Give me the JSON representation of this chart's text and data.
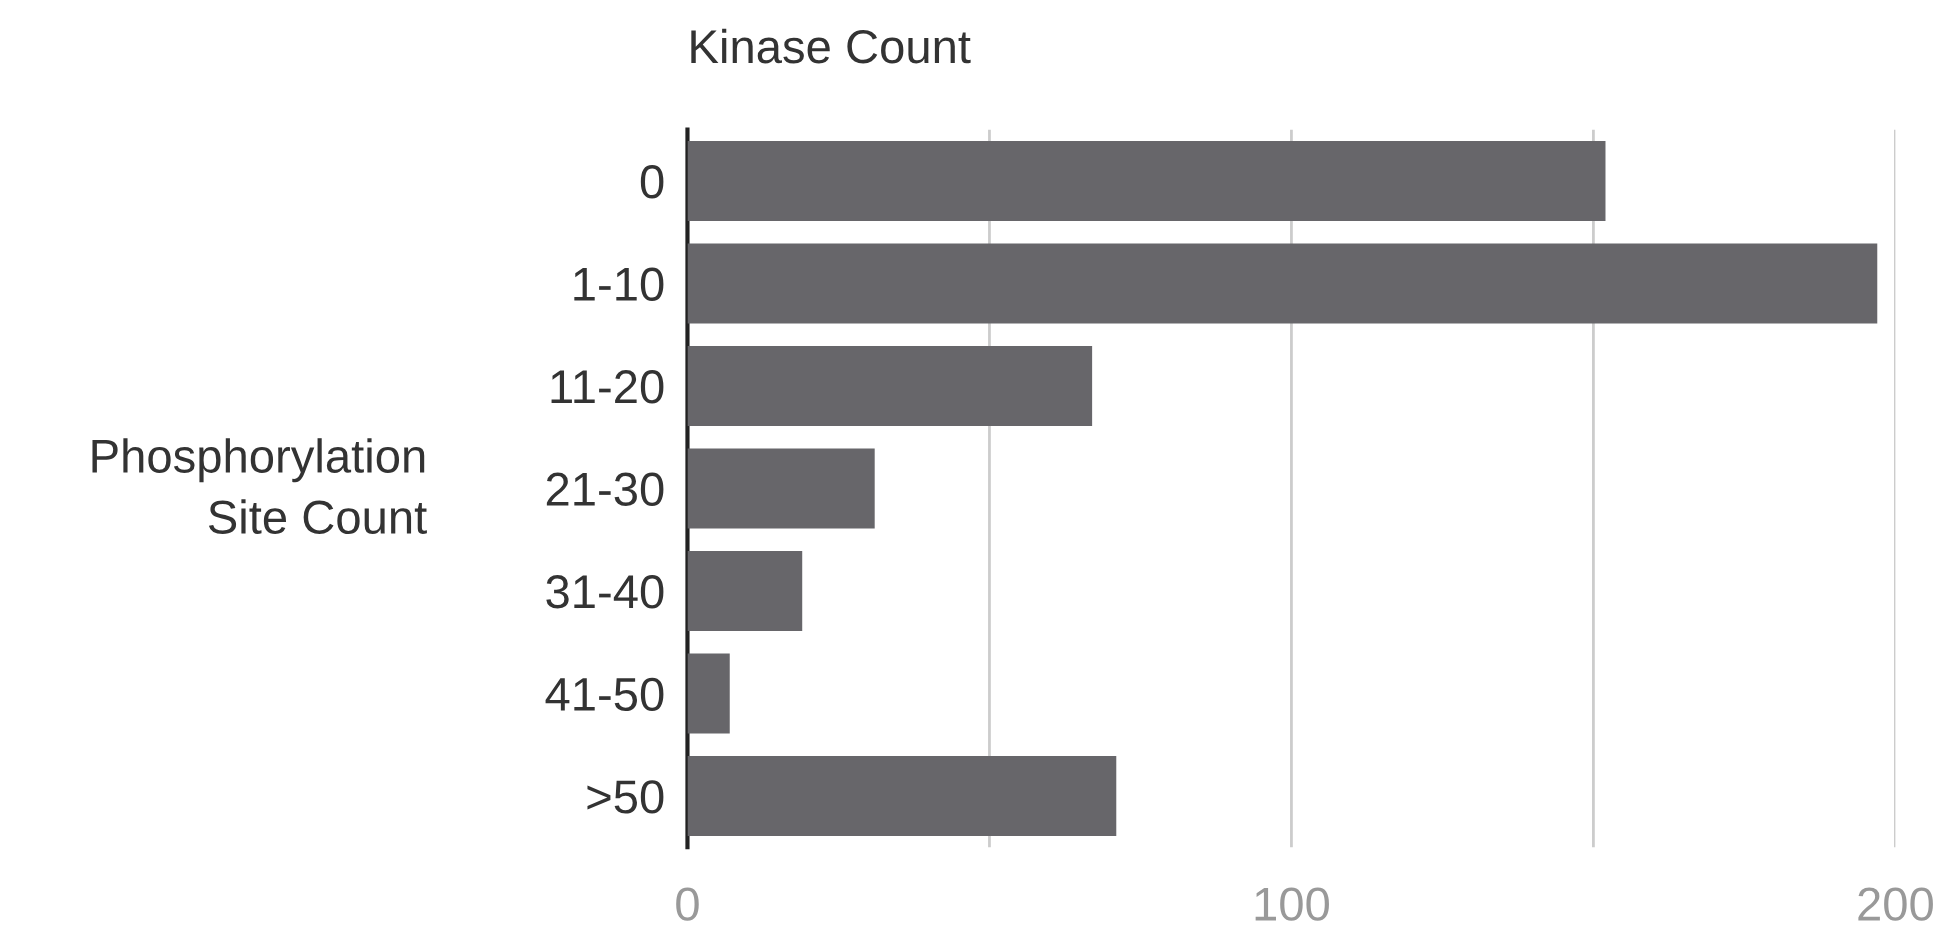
{
  "chart_data": {
    "type": "bar",
    "orientation": "horizontal",
    "xlabel": "Kinase Count",
    "ylabel": "Phosphorylation\nSite Count",
    "categories": [
      "0",
      "1-10",
      "11-20",
      "21-30",
      "31-40",
      "41-50",
      ">50"
    ],
    "values": [
      152,
      197,
      67,
      31,
      19,
      7,
      71
    ],
    "color": "#67666a",
    "xlim": [
      0,
      200
    ],
    "xticks": [
      0,
      {
        "value": 50,
        "label": null
      },
      100,
      {
        "value": 150,
        "label": null
      },
      200
    ],
    "grid": "x",
    "legend": false
  }
}
